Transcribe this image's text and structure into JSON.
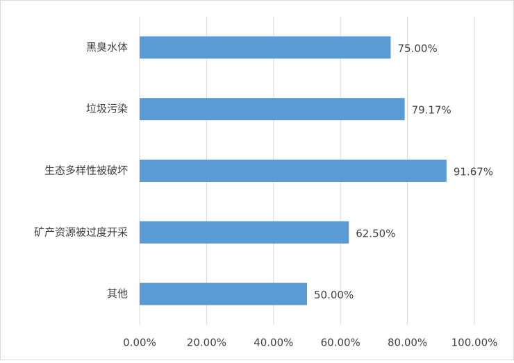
{
  "chart_data": {
    "type": "bar",
    "orientation": "horizontal",
    "categories": [
      "黑臭水体",
      "垃圾污染",
      "生态多样性被破坏",
      "矿产资源被过度开采",
      "其他"
    ],
    "values": [
      75,
      79.17,
      91.67,
      62.5,
      50
    ],
    "value_labels": [
      "75.00%",
      "79.17%",
      "91.67%",
      "62.50%",
      "50.00%"
    ],
    "color": "#5b9bd5",
    "xlim": [
      0,
      100
    ],
    "xticks": [
      {
        "value": 0,
        "label": "0.00%"
      },
      {
        "value": 20,
        "label": "20.00%"
      },
      {
        "value": 40,
        "label": "40.00%"
      },
      {
        "value": 60,
        "label": "60.00%"
      },
      {
        "value": 80,
        "label": "80.00%"
      },
      {
        "value": 100,
        "label": "100.00%"
      }
    ],
    "grid": true
  }
}
